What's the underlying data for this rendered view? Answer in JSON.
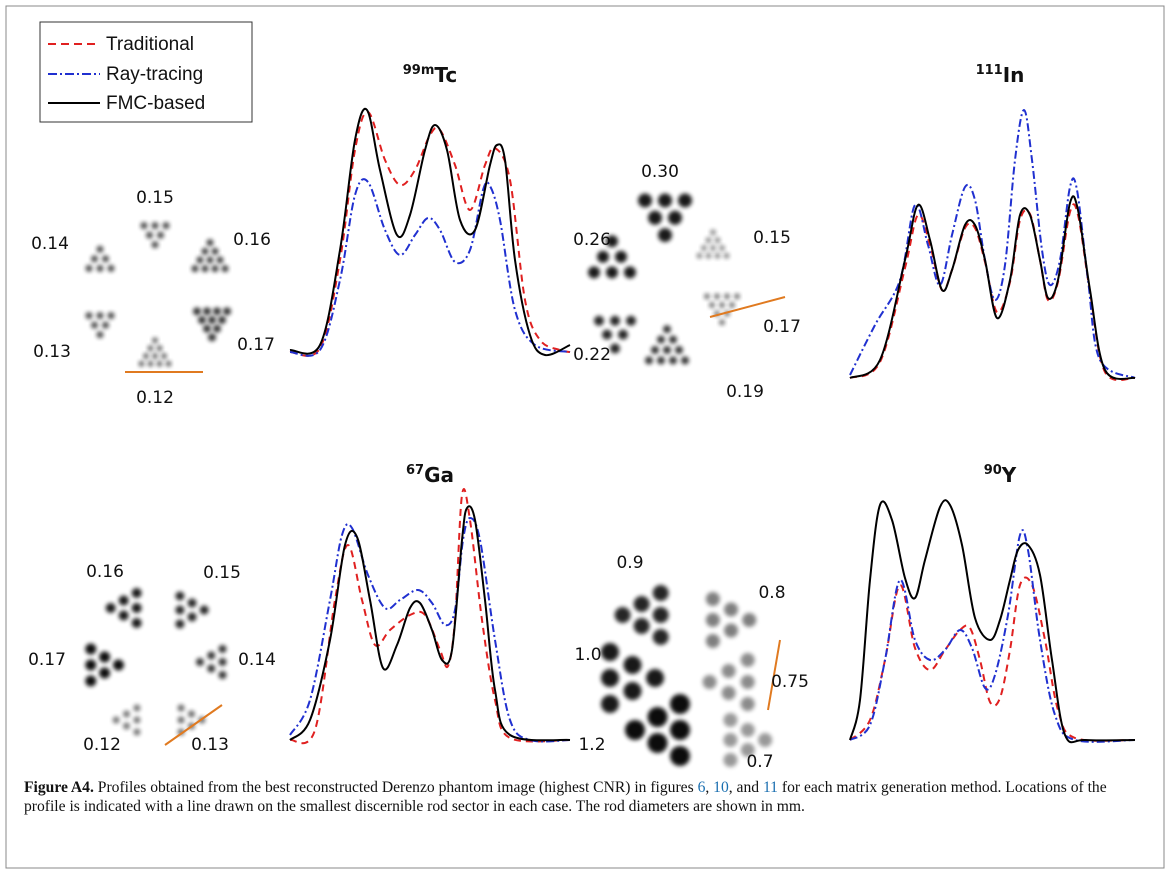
{
  "legend": [
    "Traditional",
    "Ray-tracing",
    "FMC-based"
  ],
  "panels": [
    {
      "isotope": {
        "mass": "99m",
        "element": "Tc"
      },
      "rod_labels": [
        "0.15",
        "0.16",
        "0.14",
        "0.13",
        "0.17",
        "0.12"
      ]
    },
    {
      "isotope": {
        "mass": "111",
        "element": "In"
      },
      "rod_labels": [
        "0.30",
        "0.15",
        "0.26",
        "0.17",
        "0.22",
        "0.19"
      ]
    },
    {
      "isotope": {
        "mass": "67",
        "element": "Ga"
      },
      "rod_labels": [
        "0.16",
        "0.15",
        "0.17",
        "0.14",
        "0.12",
        "0.13"
      ]
    },
    {
      "isotope": {
        "mass": "90",
        "element": "Y"
      },
      "rod_labels": [
        "0.9",
        "0.8",
        "1.0",
        "0.75",
        "1.2",
        "0.7"
      ]
    }
  ],
  "caption": {
    "label": "Figure A4.",
    "parts": [
      "Profiles obtained from the best reconstructed Derenzo phantom image (highest CNR) in figures ",
      "6",
      ", ",
      "10",
      ", and ",
      "11",
      " for each matrix generation method. Locations of the profile is indicated with a line drawn on the smallest discernible rod sector in each case. The rod diameters are shown in mm."
    ]
  }
}
